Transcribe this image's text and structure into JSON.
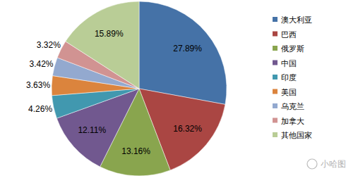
{
  "chart_data": {
    "type": "pie",
    "categories": [
      "澳大利亚",
      "巴西",
      "俄罗斯",
      "中国",
      "印度",
      "美国",
      "乌克兰",
      "加拿大",
      "其他国家"
    ],
    "values": [
      27.89,
      16.32,
      13.16,
      12.11,
      4.26,
      3.63,
      3.42,
      3.32,
      15.89
    ],
    "value_labels": [
      "27.89%",
      "16.32%",
      "13.16%",
      "12.11%",
      "4.26%",
      "3.63%",
      "3.42%",
      "3.32%",
      "15.89%"
    ],
    "colors": [
      "#4572a7",
      "#aa4643",
      "#89a54e",
      "#71588f",
      "#4198af",
      "#db843d",
      "#93a9cf",
      "#d19392",
      "#b9cd96"
    ],
    "data_labels": true,
    "legend": "right",
    "annotations": [
      "小哈图"
    ]
  }
}
